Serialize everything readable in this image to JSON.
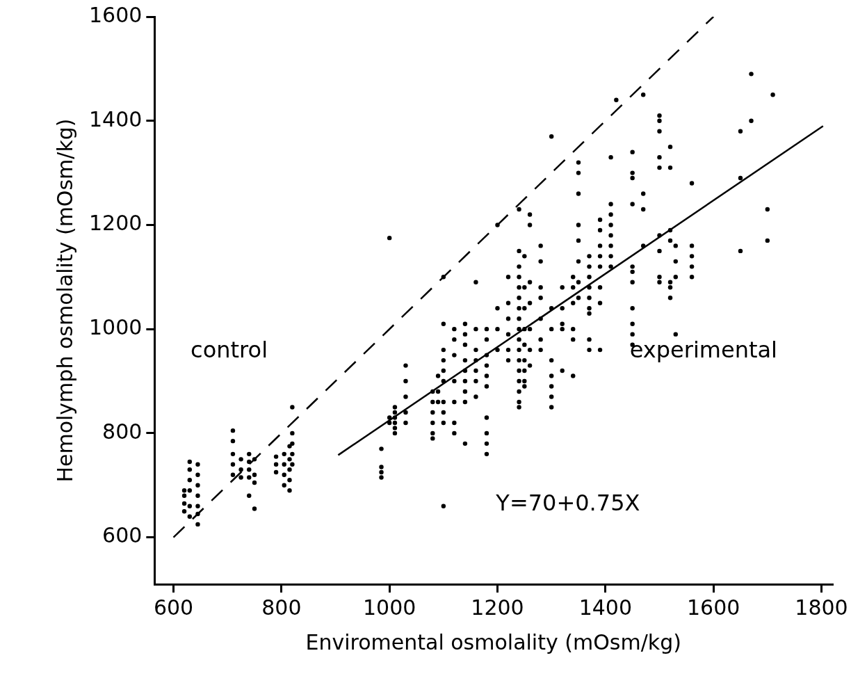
{
  "chart_data": {
    "type": "scatter",
    "xlabel": "Enviromental osmolality (mOsm/kg)",
    "ylabel": "Hemolymph osmolality (mOsm/kg)",
    "xlim": [
      565,
      1820
    ],
    "xticks": [
      600,
      800,
      1000,
      1200,
      1400,
      1600,
      1800
    ],
    "ylim": [
      510,
      1600
    ],
    "yticks": [
      600,
      800,
      1000,
      1200,
      1400,
      1600
    ],
    "grid": false,
    "legend": false,
    "marker": "circle",
    "series": [
      {
        "color": "#000000",
        "x": [
          620,
          620,
          620,
          620,
          630,
          630,
          630,
          630,
          630,
          630,
          645,
          645,
          645,
          645,
          645,
          645,
          645,
          710,
          710,
          710,
          710,
          710,
          725,
          725,
          725,
          740,
          740,
          740,
          740,
          740,
          750,
          750,
          750,
          750,
          790,
          790,
          790,
          805,
          805,
          805,
          805,
          815,
          815,
          815,
          815,
          815,
          820,
          820,
          820,
          820,
          820
        ],
        "values": [
          690,
          680,
          665,
          650,
          745,
          730,
          710,
          690,
          660,
          640,
          740,
          720,
          700,
          680,
          660,
          645,
          625,
          805,
          785,
          760,
          740,
          720,
          750,
          730,
          715,
          760,
          745,
          730,
          715,
          680,
          750,
          720,
          705,
          655,
          755,
          740,
          725,
          760,
          740,
          720,
          700,
          775,
          750,
          730,
          710,
          690,
          850,
          800,
          780,
          760,
          740
        ]
      },
      {
        "color": "#000000",
        "x": [
          985,
          985,
          985,
          985,
          1000,
          1000,
          1000,
          1010,
          1010,
          1010,
          1010,
          1010,
          1010,
          1030,
          1030,
          1030,
          1030,
          1030,
          1080,
          1080,
          1080,
          1080,
          1080,
          1080,
          1090,
          1090,
          1090,
          1100,
          1100,
          1100,
          1100,
          1100,
          1100,
          1100,
          1100,
          1100,
          1100,
          1120,
          1120,
          1120,
          1120,
          1120,
          1120,
          1120,
          1140,
          1140,
          1140,
          1140,
          1140,
          1140,
          1140,
          1140,
          1140,
          1160,
          1160,
          1160,
          1160,
          1160,
          1160,
          1160,
          1180,
          1180,
          1180,
          1180,
          1180,
          1180,
          1180,
          1180,
          1180,
          1180,
          1200,
          1200,
          1200,
          1200,
          1220,
          1220,
          1220,
          1220,
          1220,
          1220,
          1240,
          1240,
          1240,
          1240,
          1240,
          1240,
          1240,
          1240,
          1240,
          1240,
          1240,
          1240,
          1240,
          1240,
          1240,
          1240,
          1240,
          1250,
          1250,
          1250,
          1250,
          1250,
          1250,
          1250,
          1250,
          1250,
          1260,
          1260,
          1260,
          1260,
          1260,
          1260,
          1260,
          1280,
          1280,
          1280,
          1280,
          1280,
          1280,
          1280,
          1300,
          1300,
          1300,
          1300,
          1300,
          1300,
          1300,
          1300,
          1320,
          1320,
          1320,
          1320,
          1320,
          1340,
          1340,
          1340,
          1340,
          1340,
          1340,
          1350,
          1350,
          1350,
          1350,
          1350,
          1350,
          1350,
          1350,
          1370,
          1370,
          1370,
          1370,
          1370,
          1370,
          1370,
          1370,
          1370,
          1390,
          1390,
          1390,
          1390,
          1390,
          1390,
          1390,
          1390,
          1410,
          1410,
          1410,
          1410,
          1410,
          1410,
          1410,
          1410,
          1420,
          1450,
          1450,
          1450,
          1450,
          1450,
          1450,
          1450,
          1450,
          1450,
          1450,
          1450,
          1470,
          1470,
          1470,
          1470,
          1500,
          1500,
          1500,
          1500,
          1500,
          1500,
          1500,
          1500,
          1500,
          1520,
          1520,
          1520,
          1520,
          1520,
          1520,
          1520,
          1530,
          1530,
          1530,
          1530,
          1560,
          1560,
          1560,
          1560,
          1560,
          1650,
          1650,
          1650,
          1670,
          1670,
          1700,
          1700,
          1710
        ],
        "values": [
          770,
          735,
          725,
          715,
          1175,
          830,
          820,
          850,
          840,
          830,
          820,
          810,
          800,
          930,
          900,
          870,
          840,
          820,
          880,
          860,
          840,
          820,
          800,
          790,
          910,
          880,
          860,
          1100,
          1010,
          960,
          940,
          920,
          900,
          860,
          840,
          820,
          660,
          1000,
          980,
          950,
          900,
          860,
          820,
          800,
          1010,
          990,
          970,
          940,
          920,
          900,
          880,
          860,
          780,
          1000,
          960,
          940,
          920,
          900,
          870,
          1090,
          1000,
          980,
          950,
          930,
          910,
          890,
          830,
          800,
          780,
          760,
          1040,
          1000,
          960,
          1200,
          1050,
          1020,
          990,
          960,
          940,
          1100,
          1150,
          1120,
          1100,
          1080,
          1060,
          1040,
          1020,
          1000,
          980,
          960,
          940,
          920,
          900,
          880,
          860,
          850,
          1230,
          1140,
          1080,
          1040,
          1000,
          970,
          940,
          920,
          900,
          890,
          1220,
          1200,
          1090,
          1050,
          1000,
          960,
          930,
          1160,
          1130,
          1080,
          1060,
          1020,
          980,
          960,
          1370,
          1040,
          1000,
          940,
          910,
          890,
          870,
          850,
          1080,
          1040,
          1010,
          1000,
          920,
          1100,
          1080,
          1050,
          1000,
          980,
          910,
          1320,
          1300,
          1260,
          1200,
          1170,
          1130,
          1090,
          1060,
          1140,
          1120,
          1100,
          1080,
          1060,
          1040,
          1030,
          980,
          960,
          1210,
          1190,
          1160,
          1140,
          1120,
          1080,
          1050,
          960,
          1330,
          1240,
          1220,
          1200,
          1180,
          1160,
          1140,
          1120,
          1440,
          1340,
          1300,
          1290,
          1240,
          1120,
          1110,
          1090,
          1040,
          1010,
          990,
          970,
          1450,
          1260,
          1230,
          1160,
          1410,
          1400,
          1380,
          1330,
          1310,
          1180,
          1150,
          1100,
          1090,
          1350,
          1310,
          1190,
          1170,
          1090,
          1080,
          1060,
          1160,
          1130,
          1100,
          990,
          1280,
          1160,
          1140,
          1120,
          1100,
          1380,
          1290,
          1150,
          1490,
          1400,
          1230,
          1170,
          1450
        ]
      },
      {
        "type": "line",
        "marker": "none",
        "color": "#000000",
        "line_style": "dashed",
        "x": [
          600,
          1600
        ],
        "values": [
          600,
          1600
        ]
      },
      {
        "type": "line",
        "marker": "none",
        "color": "#000000",
        "line_style": "solid",
        "x": [
          905,
          1803
        ],
        "values": [
          758,
          1390
        ]
      }
    ],
    "annotations": [
      "control",
      "experimental",
      "Y=70+0.75X"
    ]
  }
}
